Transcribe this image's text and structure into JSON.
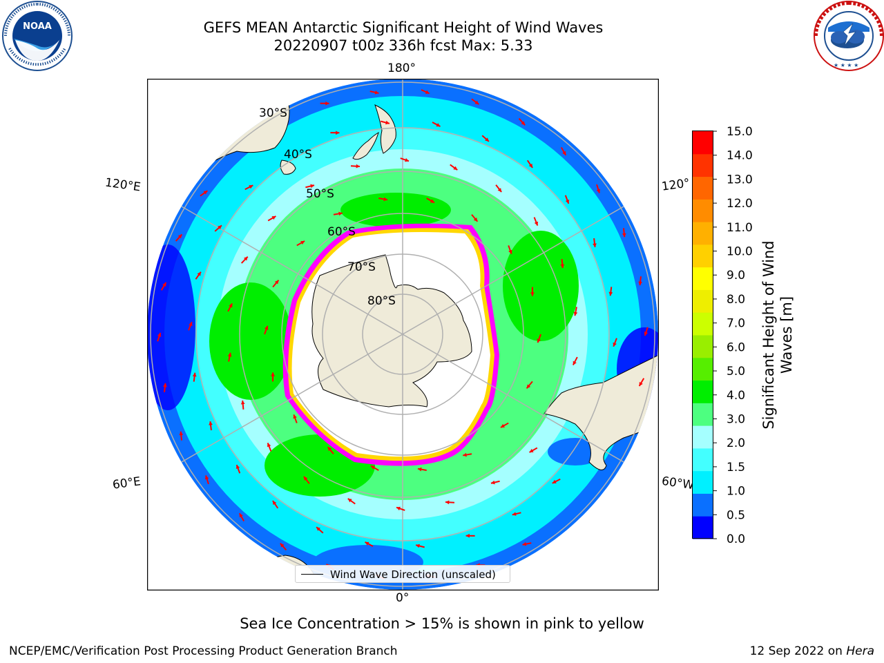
{
  "header": {
    "title_line1": "GEFS MEAN Antarctic Significant Height of Wind Waves",
    "title_line2": "20220907 t00z 336h fcst   Max: 5.33"
  },
  "logos": {
    "noaa": {
      "name": "NOAA",
      "ring_text": "NATIONAL OCEANIC AND ATMOSPHERIC ADMINISTRATION · U.S. DEPARTMENT OF COMMERCE"
    },
    "nws": {
      "ring_text": "NATIONAL WEATHER SERVICE"
    }
  },
  "map": {
    "projection": "south polar stereographic",
    "lon_labels": {
      "top": "180°",
      "bottom": "0°",
      "left_upper": "120°E",
      "left_lower": "60°E",
      "right_upper": "120°",
      "right_lower": "60°W"
    },
    "lat_labels": [
      "30°S",
      "40°S",
      "50°S",
      "60°S",
      "70°S",
      "80°S"
    ],
    "legend": "Wind Wave Direction (unscaled)",
    "colors": {
      "land": "#efebd9",
      "graticule": "#b0b0b0",
      "arrow": "#ff0000",
      "sea_ice_low": "#ff00ff",
      "sea_ice_high": "#ffd700"
    }
  },
  "colorbar": {
    "title_line1": "Significant Height of Wind",
    "title_line2": "Waves [m]",
    "ticks": [
      "15.0",
      "14.0",
      "13.0",
      "12.0",
      "11.0",
      "10.0",
      "9.0",
      "8.0",
      "7.0",
      "6.0",
      "5.0",
      "4.0",
      "3.0",
      "2.0",
      "1.5",
      "1.0",
      "0.5",
      "0.0"
    ],
    "colors": [
      "#0000ff",
      "#0a70ff",
      "#00f0ff",
      "#43ffff",
      "#a5ffff",
      "#4dff80",
      "#00ee00",
      "#56ee00",
      "#99ee00",
      "#ccff00",
      "#eeee00",
      "#ffff00",
      "#ffd000",
      "#ffb000",
      "#ff8c00",
      "#ff6600",
      "#ff3300",
      "#ff0000"
    ]
  },
  "captions": {
    "sea_ice_note": "Sea Ice Concentration > 15% is shown in pink to yellow",
    "footer_left": "NCEP/EMC/Verification Post Processing Product Generation Branch",
    "footer_right_date": "12 Sep 2022 on ",
    "footer_right_host": "Hera"
  }
}
